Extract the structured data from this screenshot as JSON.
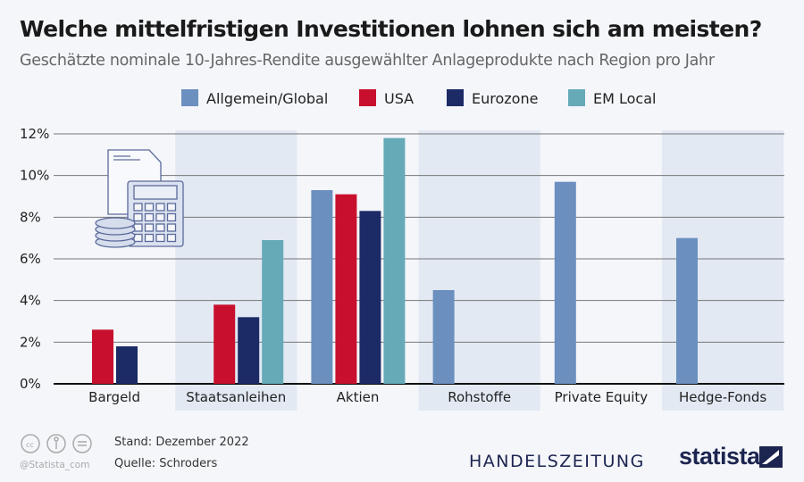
{
  "title": "Welche mittelfristigen Investitionen lohnen sich am meisten?",
  "subtitle": "Geschätzte nominale 10-Jahres-Rendite ausgewählter Anlageprodukte nach Region pro Jahr",
  "footer": {
    "stand": "Stand: Dezember 2022",
    "quelle": "Quelle: Schroders",
    "handle": "@Statista_com",
    "publisher": "HANDELSZEITUNG",
    "brand": "statista"
  },
  "chart_data": {
    "type": "bar",
    "categories": [
      "Bargeld",
      "Staatsanleihen",
      "Aktien",
      "Rohstoffe",
      "Private Equity",
      "Hedge-Fonds"
    ],
    "series": [
      {
        "name": "Allgemein/Global",
        "color": "#6b8fbf",
        "values": [
          null,
          null,
          9.3,
          4.5,
          9.7,
          7.0
        ]
      },
      {
        "name": "USA",
        "color": "#c8102e",
        "values": [
          2.6,
          3.8,
          9.1,
          null,
          null,
          null
        ]
      },
      {
        "name": "Eurozone",
        "color": "#1c2a66",
        "values": [
          1.8,
          3.2,
          8.3,
          null,
          null,
          null
        ]
      },
      {
        "name": "EM Local",
        "color": "#66aab8",
        "values": [
          null,
          6.9,
          11.8,
          null,
          null,
          null
        ]
      }
    ],
    "yticks": [
      "0%",
      "2%",
      "4%",
      "6%",
      "8%",
      "10%",
      "12%"
    ],
    "ylim": [
      0,
      12
    ],
    "grid": true,
    "legend": "top"
  }
}
